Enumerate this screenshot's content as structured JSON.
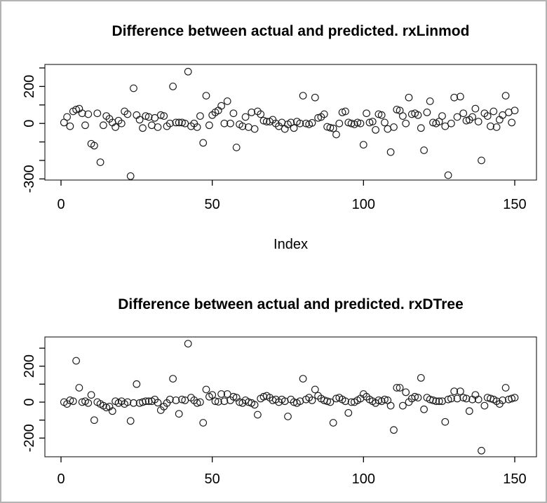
{
  "window": {
    "background": "#ffffff",
    "border_color": "#b3b3b3",
    "text_color": "#000000",
    "marker_color": "#1a1a1a"
  },
  "chart_data": [
    {
      "id": "rxLinmod",
      "type": "scatter",
      "title": "Difference between actual and predicted. rxLinmod",
      "xlabel": "Index",
      "ylabel": "",
      "marker": "open-circle",
      "grid": false,
      "legend": null,
      "xlim": [
        -5,
        157
      ],
      "ylim": [
        -306,
        319
      ],
      "x_ticks": [
        0,
        50,
        100,
        150
      ],
      "y_ticks": [
        300,
        200,
        100,
        0,
        -100,
        -200,
        -300
      ],
      "y_tick_labels_shown": [
        200,
        0,
        -300
      ],
      "points": [
        [
          1,
          5
        ],
        [
          2,
          35
        ],
        [
          3,
          -15
        ],
        [
          4,
          65
        ],
        [
          5,
          75
        ],
        [
          6,
          80
        ],
        [
          7,
          55
        ],
        [
          8,
          -10
        ],
        [
          9,
          50
        ],
        [
          10,
          -110
        ],
        [
          11,
          -120
        ],
        [
          12,
          55
        ],
        [
          13,
          -210
        ],
        [
          14,
          -10
        ],
        [
          15,
          40
        ],
        [
          16,
          25
        ],
        [
          17,
          5
        ],
        [
          18,
          -20
        ],
        [
          19,
          15
        ],
        [
          20,
          0
        ],
        [
          21,
          65
        ],
        [
          22,
          50
        ],
        [
          23,
          -285
        ],
        [
          24,
          190
        ],
        [
          25,
          45
        ],
        [
          26,
          20
        ],
        [
          27,
          -25
        ],
        [
          28,
          40
        ],
        [
          29,
          35
        ],
        [
          30,
          -10
        ],
        [
          31,
          30
        ],
        [
          32,
          -20
        ],
        [
          33,
          45
        ],
        [
          34,
          40
        ],
        [
          35,
          -15
        ],
        [
          36,
          0
        ],
        [
          37,
          200
        ],
        [
          38,
          5
        ],
        [
          39,
          5
        ],
        [
          40,
          5
        ],
        [
          41,
          0
        ],
        [
          42,
          280
        ],
        [
          43,
          -15
        ],
        [
          44,
          0
        ],
        [
          45,
          -20
        ],
        [
          46,
          40
        ],
        [
          47,
          -105
        ],
        [
          48,
          150
        ],
        [
          49,
          -10
        ],
        [
          50,
          45
        ],
        [
          51,
          60
        ],
        [
          52,
          70
        ],
        [
          53,
          95
        ],
        [
          54,
          0
        ],
        [
          55,
          120
        ],
        [
          56,
          0
        ],
        [
          57,
          55
        ],
        [
          58,
          -130
        ],
        [
          59,
          -5
        ],
        [
          60,
          -15
        ],
        [
          61,
          35
        ],
        [
          62,
          -20
        ],
        [
          63,
          60
        ],
        [
          64,
          -30
        ],
        [
          65,
          65
        ],
        [
          66,
          50
        ],
        [
          67,
          15
        ],
        [
          68,
          10
        ],
        [
          69,
          10
        ],
        [
          70,
          20
        ],
        [
          71,
          0
        ],
        [
          72,
          -15
        ],
        [
          73,
          5
        ],
        [
          74,
          -30
        ],
        [
          75,
          -5
        ],
        [
          76,
          5
        ],
        [
          77,
          -25
        ],
        [
          78,
          10
        ],
        [
          79,
          0
        ],
        [
          80,
          150
        ],
        [
          81,
          0
        ],
        [
          82,
          -5
        ],
        [
          83,
          3
        ],
        [
          84,
          140
        ],
        [
          85,
          30
        ],
        [
          86,
          35
        ],
        [
          87,
          50
        ],
        [
          88,
          -18
        ],
        [
          89,
          -23
        ],
        [
          90,
          -27
        ],
        [
          91,
          -60
        ],
        [
          92,
          0
        ],
        [
          93,
          60
        ],
        [
          94,
          65
        ],
        [
          95,
          5
        ],
        [
          96,
          0
        ],
        [
          97,
          -5
        ],
        [
          98,
          5
        ],
        [
          99,
          0
        ],
        [
          100,
          -115
        ],
        [
          101,
          55
        ],
        [
          102,
          5
        ],
        [
          103,
          10
        ],
        [
          104,
          -35
        ],
        [
          105,
          50
        ],
        [
          106,
          45
        ],
        [
          107,
          5
        ],
        [
          108,
          -30
        ],
        [
          109,
          -155
        ],
        [
          110,
          -20
        ],
        [
          111,
          75
        ],
        [
          112,
          70
        ],
        [
          113,
          40
        ],
        [
          114,
          0
        ],
        [
          115,
          140
        ],
        [
          116,
          50
        ],
        [
          117,
          55
        ],
        [
          118,
          45
        ],
        [
          119,
          -25
        ],
        [
          120,
          -145
        ],
        [
          121,
          60
        ],
        [
          122,
          120
        ],
        [
          123,
          5
        ],
        [
          124,
          0
        ],
        [
          125,
          10
        ],
        [
          126,
          40
        ],
        [
          127,
          -15
        ],
        [
          128,
          -280
        ],
        [
          129,
          0
        ],
        [
          130,
          140
        ],
        [
          131,
          35
        ],
        [
          132,
          145
        ],
        [
          133,
          55
        ],
        [
          134,
          15
        ],
        [
          135,
          20
        ],
        [
          136,
          35
        ],
        [
          137,
          80
        ],
        [
          138,
          10
        ],
        [
          139,
          -200
        ],
        [
          140,
          55
        ],
        [
          141,
          40
        ],
        [
          142,
          -15
        ],
        [
          143,
          65
        ],
        [
          144,
          -20
        ],
        [
          145,
          20
        ],
        [
          146,
          45
        ],
        [
          147,
          150
        ],
        [
          148,
          60
        ],
        [
          149,
          5
        ],
        [
          150,
          70
        ]
      ]
    },
    {
      "id": "rxDTree",
      "type": "scatter",
      "title": "Difference between actual and predicted. rxDTree",
      "xlabel": "",
      "ylabel": "",
      "marker": "open-circle",
      "grid": false,
      "legend": null,
      "xlim": [
        -5,
        157
      ],
      "ylim": [
        -304,
        362
      ],
      "x_ticks": [
        0,
        50,
        100,
        150
      ],
      "y_ticks": [
        300,
        200,
        100,
        0,
        -100,
        -200
      ],
      "y_tick_labels_shown": [
        200,
        0,
        -200
      ],
      "points": [
        [
          1,
          0
        ],
        [
          2,
          -10
        ],
        [
          3,
          10
        ],
        [
          4,
          5
        ],
        [
          5,
          230
        ],
        [
          6,
          80
        ],
        [
          7,
          0
        ],
        [
          8,
          5
        ],
        [
          9,
          -5
        ],
        [
          10,
          40
        ],
        [
          11,
          -100
        ],
        [
          12,
          0
        ],
        [
          13,
          -10
        ],
        [
          14,
          -20
        ],
        [
          15,
          -30
        ],
        [
          16,
          -25
        ],
        [
          17,
          -50
        ],
        [
          18,
          5
        ],
        [
          19,
          -5
        ],
        [
          20,
          5
        ],
        [
          21,
          -10
        ],
        [
          22,
          0
        ],
        [
          23,
          -105
        ],
        [
          24,
          -5
        ],
        [
          25,
          100
        ],
        [
          26,
          -5
        ],
        [
          27,
          0
        ],
        [
          28,
          5
        ],
        [
          29,
          5
        ],
        [
          30,
          5
        ],
        [
          31,
          15
        ],
        [
          32,
          -3
        ],
        [
          33,
          -45
        ],
        [
          34,
          -25
        ],
        [
          35,
          -5
        ],
        [
          36,
          15
        ],
        [
          37,
          130
        ],
        [
          38,
          10
        ],
        [
          39,
          -65
        ],
        [
          40,
          15
        ],
        [
          41,
          10
        ],
        [
          42,
          325
        ],
        [
          43,
          25
        ],
        [
          44,
          10
        ],
        [
          45,
          -5
        ],
        [
          46,
          0
        ],
        [
          47,
          -115
        ],
        [
          48,
          70
        ],
        [
          49,
          30
        ],
        [
          50,
          40
        ],
        [
          51,
          5
        ],
        [
          52,
          2
        ],
        [
          53,
          45
        ],
        [
          54,
          5
        ],
        [
          55,
          45
        ],
        [
          56,
          10
        ],
        [
          57,
          30
        ],
        [
          58,
          25
        ],
        [
          59,
          0
        ],
        [
          60,
          -5
        ],
        [
          61,
          10
        ],
        [
          62,
          0
        ],
        [
          63,
          -5
        ],
        [
          64,
          -15
        ],
        [
          65,
          -70
        ],
        [
          66,
          20
        ],
        [
          67,
          30
        ],
        [
          68,
          35
        ],
        [
          69,
          25
        ],
        [
          70,
          10
        ],
        [
          71,
          15
        ],
        [
          72,
          0
        ],
        [
          73,
          15
        ],
        [
          74,
          5
        ],
        [
          75,
          -80
        ],
        [
          76,
          15
        ],
        [
          77,
          0
        ],
        [
          78,
          -5
        ],
        [
          79,
          5
        ],
        [
          80,
          130
        ],
        [
          81,
          15
        ],
        [
          82,
          25
        ],
        [
          83,
          10
        ],
        [
          84,
          70
        ],
        [
          85,
          35
        ],
        [
          86,
          20
        ],
        [
          87,
          10
        ],
        [
          88,
          5
        ],
        [
          89,
          0
        ],
        [
          90,
          -115
        ],
        [
          91,
          20
        ],
        [
          92,
          25
        ],
        [
          93,
          15
        ],
        [
          94,
          5
        ],
        [
          95,
          -60
        ],
        [
          96,
          0
        ],
        [
          97,
          0
        ],
        [
          98,
          10
        ],
        [
          99,
          20
        ],
        [
          100,
          45
        ],
        [
          101,
          30
        ],
        [
          102,
          15
        ],
        [
          103,
          5
        ],
        [
          104,
          -5
        ],
        [
          105,
          10
        ],
        [
          106,
          5
        ],
        [
          107,
          15
        ],
        [
          108,
          10
        ],
        [
          109,
          -20
        ],
        [
          110,
          -155
        ],
        [
          111,
          80
        ],
        [
          112,
          80
        ],
        [
          113,
          -20
        ],
        [
          114,
          55
        ],
        [
          115,
          0
        ],
        [
          116,
          20
        ],
        [
          117,
          30
        ],
        [
          118,
          25
        ],
        [
          119,
          135
        ],
        [
          120,
          -40
        ],
        [
          121,
          25
        ],
        [
          122,
          15
        ],
        [
          123,
          10
        ],
        [
          124,
          5
        ],
        [
          125,
          5
        ],
        [
          126,
          5
        ],
        [
          127,
          -110
        ],
        [
          128,
          15
        ],
        [
          129,
          20
        ],
        [
          130,
          60
        ],
        [
          131,
          20
        ],
        [
          132,
          60
        ],
        [
          133,
          25
        ],
        [
          134,
          20
        ],
        [
          135,
          -50
        ],
        [
          136,
          15
        ],
        [
          137,
          40
        ],
        [
          138,
          15
        ],
        [
          139,
          -270
        ],
        [
          140,
          -20
        ],
        [
          141,
          25
        ],
        [
          142,
          20
        ],
        [
          143,
          15
        ],
        [
          144,
          5
        ],
        [
          145,
          -10
        ],
        [
          146,
          10
        ],
        [
          147,
          80
        ],
        [
          148,
          15
        ],
        [
          149,
          20
        ],
        [
          150,
          25
        ]
      ]
    }
  ]
}
